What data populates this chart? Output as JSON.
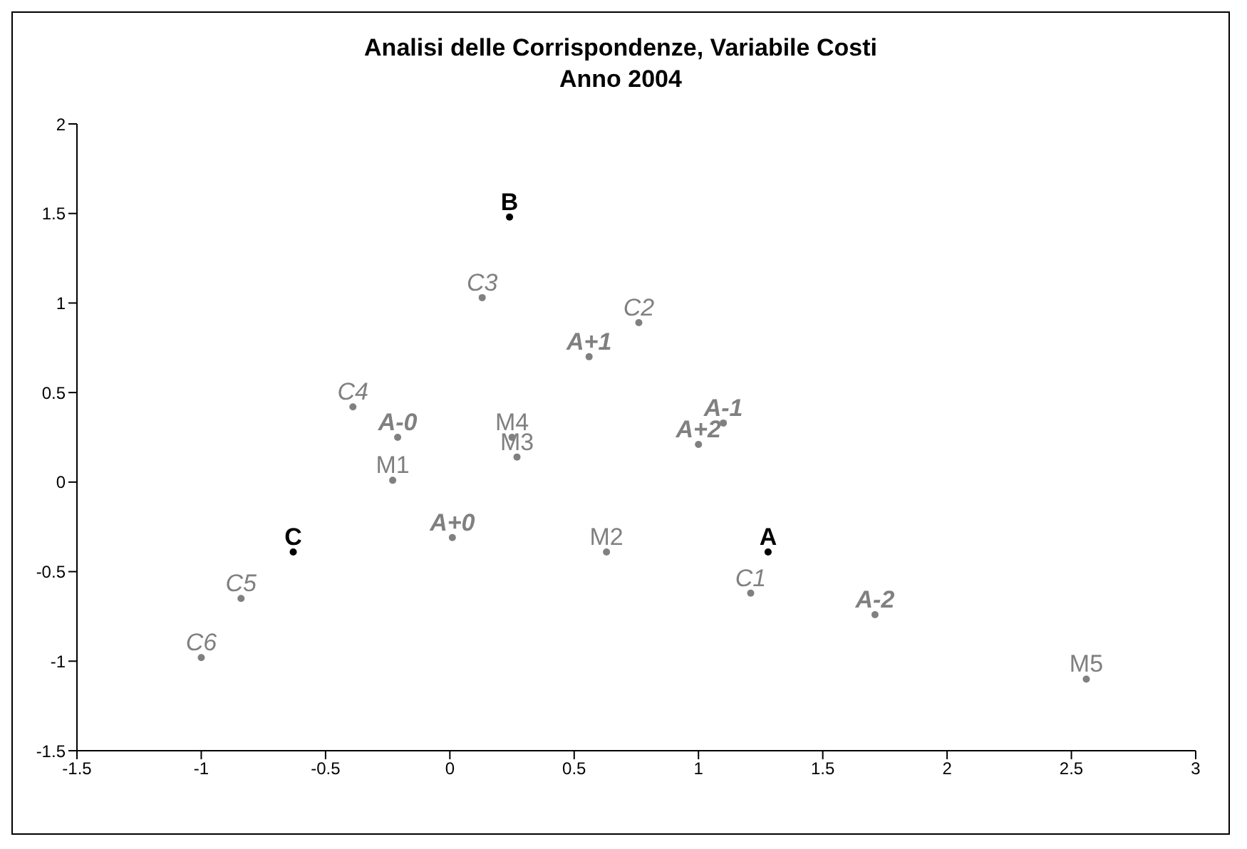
{
  "chart_data": {
    "type": "scatter",
    "title": "Analisi delle Corrispondenze, Variabile Costi",
    "subtitle": "Anno 2004",
    "marker": "circle",
    "legend": false,
    "grid": false,
    "xlim": [
      -1.5,
      3
    ],
    "xticks": [
      -1.5,
      -1,
      -0.5,
      0,
      0.5,
      1,
      1.5,
      2,
      2.5,
      3
    ],
    "ylim": [
      -1.5,
      2
    ],
    "yticks": [
      -1.5,
      -1,
      -0.5,
      0,
      0.5,
      1,
      1.5,
      2
    ],
    "series": [
      {
        "color": "#000000",
        "x": [
          1.28,
          0.24,
          -0.63
        ],
        "values": [
          -0.39,
          1.48,
          -0.39
        ],
        "value_labels": [
          "A",
          "B",
          "C"
        ]
      },
      {
        "color": "#808080",
        "x": [
          -0.21,
          0.01,
          0.56,
          1.0,
          1.1,
          1.71
        ],
        "values": [
          0.25,
          -0.31,
          0.7,
          0.21,
          0.33,
          -0.74
        ],
        "value_labels": [
          "A-0",
          "A+0",
          "A+1",
          "A+2",
          "A-1",
          "A-2"
        ]
      },
      {
        "color": "#808080",
        "x": [
          1.21,
          0.76,
          0.13,
          -0.39,
          -0.84,
          -1.0
        ],
        "values": [
          -0.62,
          0.89,
          1.03,
          0.42,
          -0.65,
          -0.98
        ],
        "value_labels": [
          "C1",
          "C2",
          "C3",
          "C4",
          "C5",
          "C6"
        ]
      },
      {
        "color": "#808080",
        "x": [
          -0.23,
          0.63,
          0.27,
          0.25,
          2.56
        ],
        "values": [
          0.01,
          -0.39,
          0.14,
          0.25,
          -1.1
        ],
        "value_labels": [
          "M1",
          "M2",
          "M3",
          "M4",
          "M5"
        ]
      }
    ]
  }
}
